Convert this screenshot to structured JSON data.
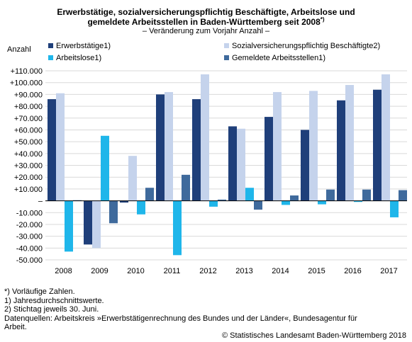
{
  "chart_data": {
    "type": "bar",
    "title_line1": "Erwerbstätige, sozialversicherungspflichtig Beschäftigte,  Arbeitslose und",
    "title_line2": "gemeldete Arbeitsstellen in Baden-Württemberg seit 2008",
    "title_sup": "*)",
    "subtitle": "– Veränderung zum Vorjahr Anzahl –",
    "ylabel": "Anzahl",
    "xlabel": "",
    "ylim": [
      -50000,
      110000
    ],
    "y_ticks": [
      -50000,
      -40000,
      -30000,
      -20000,
      -10000,
      0,
      10000,
      20000,
      30000,
      40000,
      50000,
      60000,
      70000,
      80000,
      90000,
      100000,
      110000
    ],
    "y_tick_labels": [
      "-50.000",
      "-40.000",
      "-30.000",
      "-20.000",
      "-10.000",
      "–",
      "+10.000",
      "+20.000",
      "+30.000",
      "+40.000",
      "+50.000",
      "+60.000",
      "+70.000",
      "+80.000",
      "+90.000",
      "+100.000",
      "+110.000"
    ],
    "grid": "horizontal",
    "legend_position": "top",
    "categories": [
      "2008",
      "2009",
      "2010",
      "2011",
      "2012",
      "2013",
      "2014",
      "2015",
      "2016",
      "2017"
    ],
    "series": [
      {
        "name": "Erwerbstätige1)",
        "color": "#1f3f7a",
        "values": [
          86000,
          -37000,
          -1500,
          90000,
          86000,
          63000,
          71000,
          60000,
          85000,
          94000
        ]
      },
      {
        "name": "Sozialversicherungspflichtig Beschäftigte2)",
        "color": "#c5d3ec",
        "values": [
          91000,
          -40000,
          38000,
          92000,
          107000,
          61000,
          92000,
          93000,
          98000,
          107000
        ]
      },
      {
        "name": "Arbeitslose1)",
        "color": "#1fb6ea",
        "values": [
          -43000,
          55000,
          -11500,
          -46000,
          -5000,
          11000,
          -3500,
          -3000,
          -1000,
          -14000
        ]
      },
      {
        "name": "Gemeldete Arbeitsstellen1)",
        "color": "#3f6a9c",
        "values": [
          500,
          -19000,
          11000,
          22000,
          1000,
          -7500,
          4500,
          9500,
          9500,
          9000
        ]
      }
    ]
  },
  "footnotes": [
    " *) Vorläufige Zahlen.",
    "1) Jahresdurchschnittswerte.",
    "2) Stichtag jeweils 30. Juni.",
    "Datenquellen: Arbeitskreis »Erwerbstätigenrechnung des Bundes und der Länder«, Bundesagentur für",
    "Arbeit."
  ],
  "copyright": "© Statistisches Landesamt Baden-Württemberg 2018"
}
